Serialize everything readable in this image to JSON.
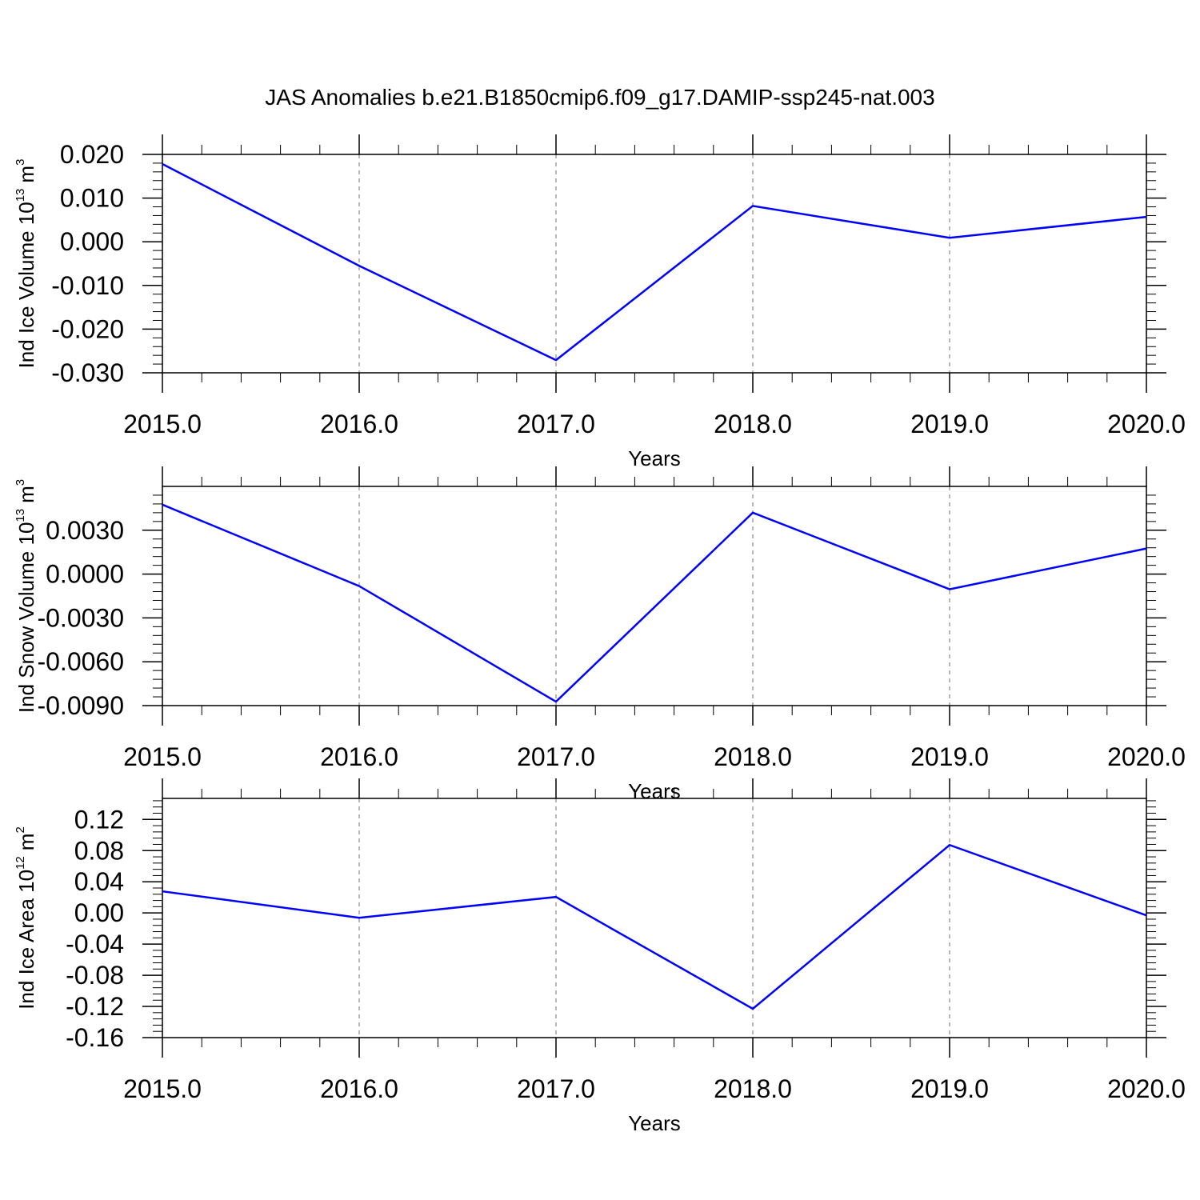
{
  "title": "JAS Anomalies b.e21.B1850cmip6.f09_g17.DAMIP-ssp245-nat.003",
  "chart_data": [
    {
      "type": "line",
      "ylabel": [
        "Ind Ice Volume 10",
        "13",
        "m",
        "3"
      ],
      "xlabel": "Years",
      "x": [
        2015,
        2016,
        2017,
        2018,
        2019,
        2020
      ],
      "values": [
        0.0178,
        -0.0055,
        -0.0271,
        0.0082,
        0.0009,
        0.0057
      ],
      "color": "#0000ff",
      "xlim": [
        2015,
        2020
      ],
      "ylim": [
        -0.03,
        0.02
      ],
      "xticks": [
        {
          "value": 2015,
          "label": "2015.0"
        },
        {
          "value": 2016,
          "label": "2016.0"
        },
        {
          "value": 2017,
          "label": "2017.0"
        },
        {
          "value": 2018,
          "label": "2018.0"
        },
        {
          "value": 2019,
          "label": "2019.0"
        },
        {
          "value": 2020,
          "label": "2020.0"
        }
      ],
      "yticks": [
        {
          "value": -0.03,
          "label": "-0.030"
        },
        {
          "value": -0.02,
          "label": "-0.020"
        },
        {
          "value": -0.01,
          "label": "-0.010"
        },
        {
          "value": 0,
          "label": "0.000"
        },
        {
          "value": 0.01,
          "label": "0.010"
        },
        {
          "value": 0.02,
          "label": "0.020"
        }
      ],
      "xgrid": true
    },
    {
      "type": "line",
      "ylabel": [
        "Ind Snow Volume 10",
        "13",
        "m",
        "3"
      ],
      "xlabel": "Years",
      "x": [
        2015,
        2016,
        2017,
        2018,
        2019,
        2020
      ],
      "values": [
        0.00475,
        -0.00082,
        -0.00873,
        0.0042,
        -0.00104,
        0.00175
      ],
      "color": "#0000ff",
      "xlim": [
        2015,
        2020
      ],
      "ylim": [
        -0.009,
        0.006
      ],
      "xticks": [
        {
          "value": 2015,
          "label": "2015.0"
        },
        {
          "value": 2016,
          "label": "2016.0"
        },
        {
          "value": 2017,
          "label": "2017.0"
        },
        {
          "value": 2018,
          "label": "2018.0"
        },
        {
          "value": 2019,
          "label": "2019.0"
        },
        {
          "value": 2020,
          "label": "2020.0"
        }
      ],
      "yticks": [
        {
          "value": -0.009,
          "label": "-0.0090"
        },
        {
          "value": -0.006,
          "label": "-0.0060"
        },
        {
          "value": -0.003,
          "label": "-0.0030"
        },
        {
          "value": 0,
          "label": "0.0000"
        },
        {
          "value": 0.003,
          "label": "0.0030"
        }
      ],
      "xgrid": true
    },
    {
      "type": "line",
      "ylabel": [
        "Ind Ice Area 10",
        "12",
        "m",
        "2"
      ],
      "xlabel": "Years",
      "x": [
        2015,
        2016,
        2017,
        2018,
        2019,
        2020
      ],
      "values": [
        0.0277,
        -0.0062,
        0.0205,
        -0.123,
        0.0872,
        -0.0031
      ],
      "color": "#0000ff",
      "xlim": [
        2015,
        2020
      ],
      "ylim": [
        -0.16,
        0.147
      ],
      "xticks": [
        {
          "value": 2015,
          "label": "2015.0"
        },
        {
          "value": 2016,
          "label": "2016.0"
        },
        {
          "value": 2017,
          "label": "2017.0"
        },
        {
          "value": 2018,
          "label": "2018.0"
        },
        {
          "value": 2019,
          "label": "2019.0"
        },
        {
          "value": 2020,
          "label": "2020.0"
        }
      ],
      "yticks": [
        -0.16,
        -0.12,
        -0.08,
        -0.04,
        {
          "value": 0,
          "label": "0.00"
        },
        0.04,
        0.08,
        0.12
      ],
      "xgrid": true
    }
  ]
}
